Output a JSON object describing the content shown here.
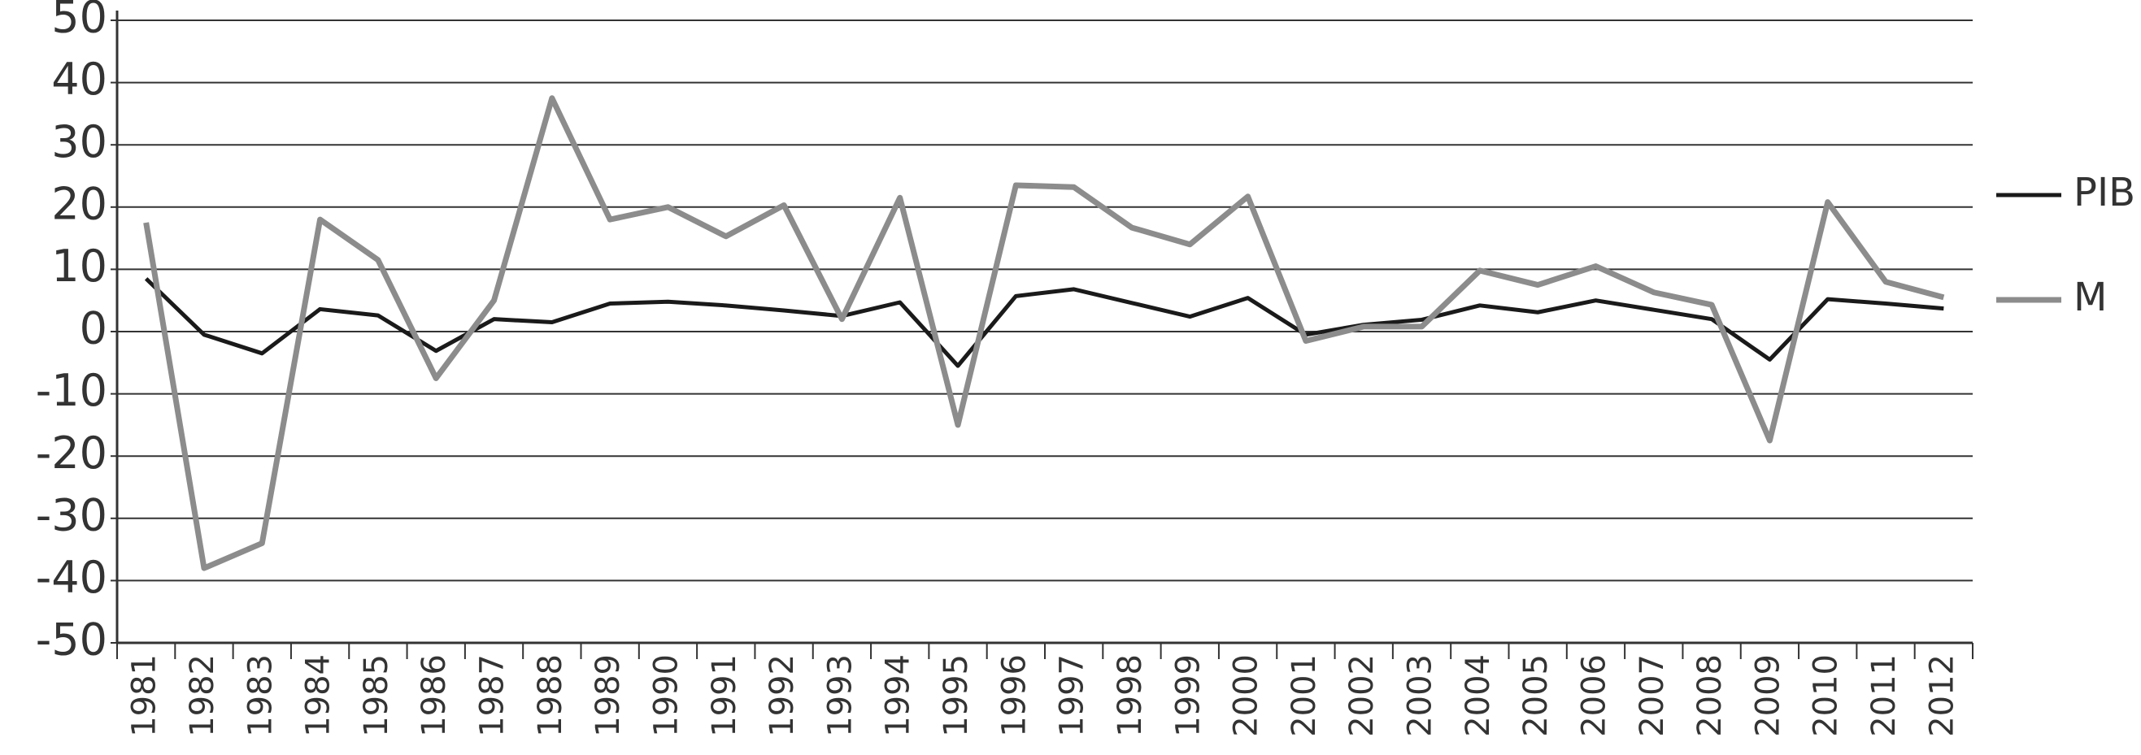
{
  "chart_data": {
    "type": "line",
    "categories": [
      "1981",
      "1982",
      "1983",
      "1984",
      "1985",
      "1986",
      "1987",
      "1988",
      "1989",
      "1990",
      "1991",
      "1992",
      "1993",
      "1994",
      "1995",
      "1996",
      "1997",
      "1998",
      "1999",
      "2000",
      "2001",
      "2002",
      "2003",
      "2004",
      "2005",
      "2006",
      "2007",
      "2008",
      "2009",
      "2010",
      "2011",
      "2012"
    ],
    "series": [
      {
        "name": "PIB",
        "color": "#1a1a1a",
        "values": [
          8.5,
          -0.5,
          -3.5,
          3.6,
          2.6,
          -3.1,
          2,
          1.5,
          4.5,
          4.8,
          4.2,
          3.4,
          2.5,
          4.7,
          -5.5,
          5.7,
          6.8,
          4.6,
          2.4,
          5.4,
          -0.5,
          1.1,
          1.9,
          4.2,
          3.1,
          5,
          3.5,
          2,
          -4.5,
          5.2,
          4.5,
          3.7
        ]
      },
      {
        "name": "M",
        "color": "#8c8c8c",
        "values": [
          17.5,
          -38,
          -34,
          18,
          11.5,
          -7.5,
          5,
          37.5,
          18,
          20,
          15.3,
          20.3,
          2,
          21.5,
          -15,
          23.5,
          23.2,
          16.7,
          14,
          21.7,
          -1.5,
          0.8,
          0.8,
          9.8,
          7.5,
          10.5,
          6.3,
          4.3,
          -17.5,
          20.8,
          8,
          5.5
        ]
      }
    ],
    "ylim": [
      -50,
      50
    ],
    "yticks": [
      -50,
      -40,
      -30,
      -20,
      -10,
      0,
      10,
      20,
      30,
      40,
      50
    ],
    "grid": true,
    "legend": "right"
  }
}
